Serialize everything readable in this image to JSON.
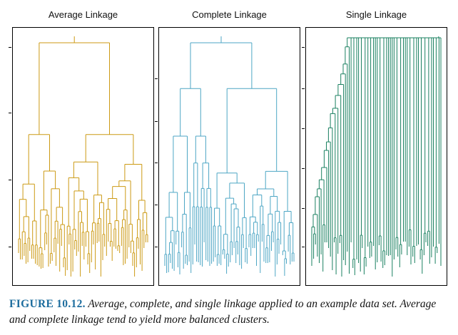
{
  "panels": [
    {
      "title": "Average Linkage",
      "color": "#cc9a14"
    },
    {
      "title": "Complete Linkage",
      "color": "#4da6c4"
    },
    {
      "title": "Single Linkage",
      "color": "#1a8060"
    }
  ],
  "caption": {
    "label": "FIGURE 10.12.",
    "text": "Average, complete, and single linkage applied to an example data set. Average and complete linkage tend to yield more balanced clusters."
  }
}
